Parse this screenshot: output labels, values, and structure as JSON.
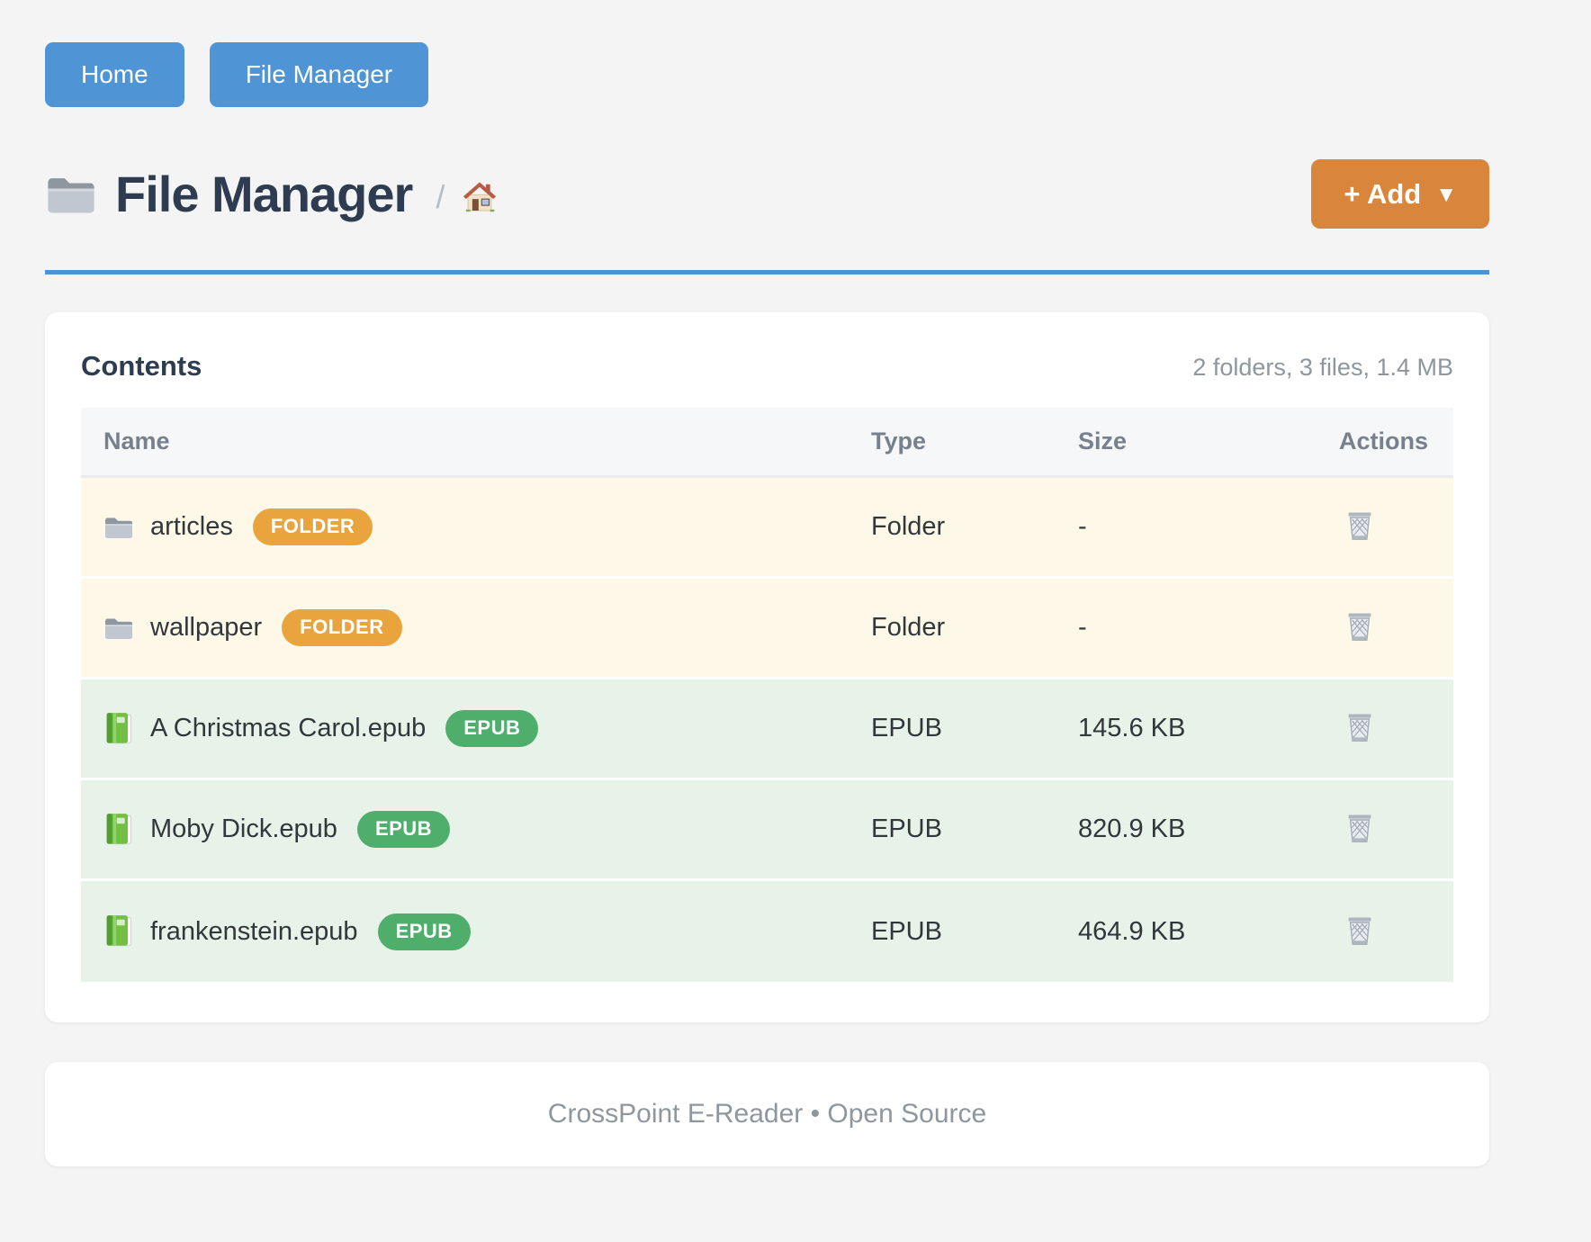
{
  "nav": {
    "buttons": [
      {
        "label": "Home"
      },
      {
        "label": "File Manager"
      }
    ]
  },
  "header": {
    "icon": "folder-icon",
    "title": "File Manager",
    "breadcrumb_separator": "/",
    "breadcrumb_home_icon": "home-icon",
    "add_button_label": "+ Add",
    "add_button_caret": "▼"
  },
  "card": {
    "title": "Contents",
    "summary": "2 folders, 3 files, 1.4 MB",
    "table": {
      "columns": [
        "Name",
        "Type",
        "Size",
        "Actions"
      ],
      "action_icon": "trash-icon",
      "rows": [
        {
          "icon": "folder-icon",
          "name": "articles",
          "badge": "FOLDER",
          "type": "Folder",
          "size": "-",
          "kind": "folder"
        },
        {
          "icon": "folder-icon",
          "name": "wallpaper",
          "badge": "FOLDER",
          "type": "Folder",
          "size": "-",
          "kind": "folder"
        },
        {
          "icon": "book-icon",
          "name": "A Christmas Carol.epub",
          "badge": "EPUB",
          "type": "EPUB",
          "size": "145.6 KB",
          "kind": "epub"
        },
        {
          "icon": "book-icon",
          "name": "Moby Dick.epub",
          "badge": "EPUB",
          "type": "EPUB",
          "size": "820.9 KB",
          "kind": "epub"
        },
        {
          "icon": "book-icon",
          "name": "frankenstein.epub",
          "badge": "EPUB",
          "type": "EPUB",
          "size": "464.9 KB",
          "kind": "epub"
        }
      ]
    }
  },
  "footer": {
    "text": "CrossPoint E-Reader • Open Source"
  },
  "colors": {
    "page_bg": "#f4f4f5",
    "nav_button_bg": "#4f94d4",
    "add_button_bg": "#d9853b",
    "title_color": "#2d3c50",
    "rule_color": "#4e93d1",
    "header_row_bg": "#f6f7f9",
    "header_text": "#76818d",
    "folder_row_bg": "#fdf8e7",
    "epub_row_bg": "#e7f2e9",
    "folder_badge_bg": "#e9a43e",
    "epub_badge_bg": "#4fae6c",
    "text_dark": "#32373c",
    "muted_color": "#8e969e"
  }
}
